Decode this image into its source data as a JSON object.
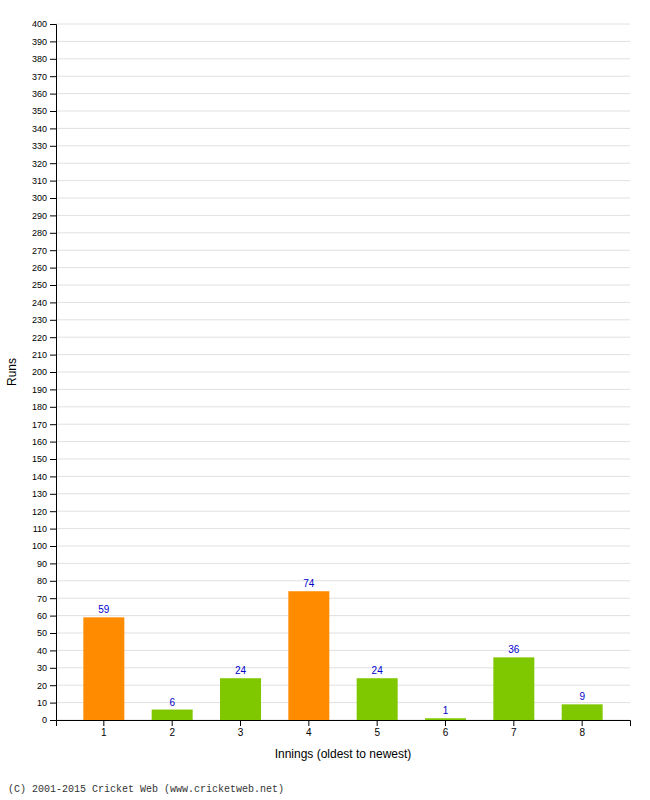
{
  "chart_data": {
    "type": "bar",
    "categories": [
      "1",
      "2",
      "3",
      "4",
      "5",
      "6",
      "7",
      "8"
    ],
    "values": [
      59,
      6,
      24,
      74,
      24,
      1,
      36,
      9
    ],
    "colors": [
      "#ff8c00",
      "#7fc800",
      "#7fc800",
      "#ff8c00",
      "#7fc800",
      "#7fc800",
      "#7fc800",
      "#7fc800"
    ],
    "xlabel": "Innings (oldest to newest)",
    "ylabel": "Runs",
    "ylim": [
      0,
      400
    ],
    "yticks": [
      0,
      10,
      20,
      30,
      40,
      50,
      60,
      70,
      80,
      90,
      100,
      110,
      120,
      130,
      140,
      150,
      160,
      170,
      180,
      190,
      200,
      210,
      220,
      230,
      240,
      250,
      260,
      270,
      280,
      290,
      300,
      310,
      320,
      330,
      340,
      350,
      360,
      370,
      380,
      390,
      400
    ],
    "grid": true,
    "data_labels": true,
    "annotations": [
      "(C) 2001-2015 Cricket Web (www.cricketweb.net)"
    ]
  }
}
